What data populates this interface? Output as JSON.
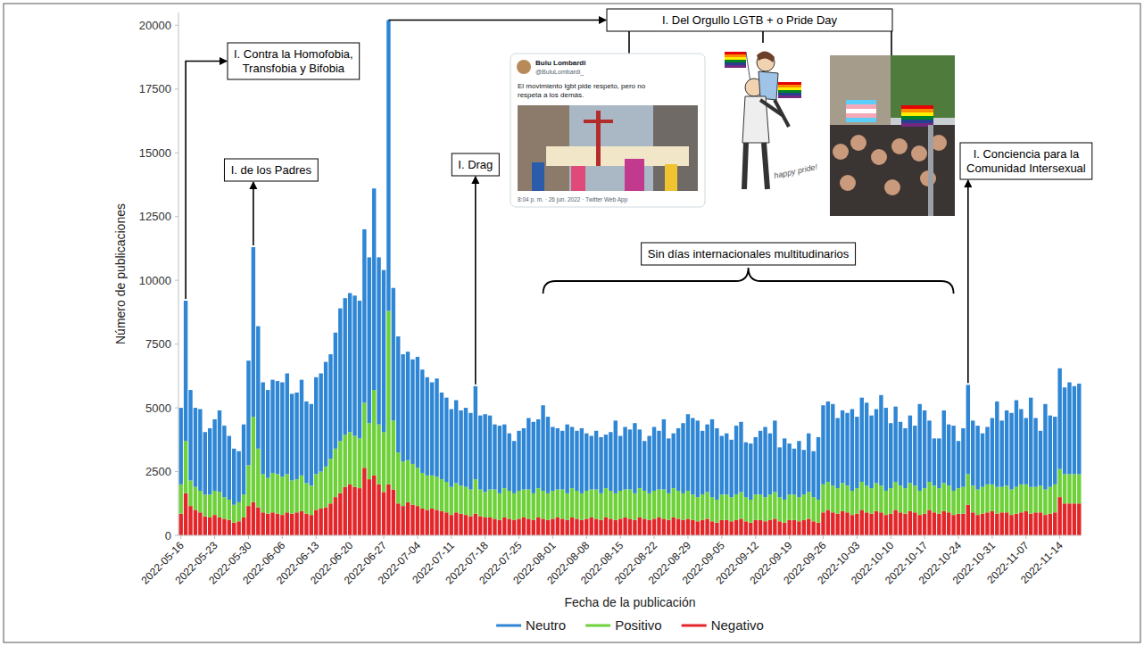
{
  "chart_data": {
    "type": "bar",
    "stacked": true,
    "grid": false,
    "legend": "bottom",
    "xlabel": "Fecha de la publicación",
    "ylabel": "Número de publicaciones",
    "ylim": [
      0,
      20500
    ],
    "yticks": [
      0,
      2500,
      5000,
      7500,
      10000,
      12500,
      15000,
      17500,
      20000
    ],
    "categories": [
      "2022-05-16",
      null,
      null,
      null,
      null,
      null,
      null,
      "2022-05-23",
      null,
      null,
      null,
      null,
      null,
      null,
      "2022-05-30",
      null,
      null,
      null,
      null,
      null,
      null,
      "2022-06-06",
      null,
      null,
      null,
      null,
      null,
      null,
      "2022-06-13",
      null,
      null,
      null,
      null,
      null,
      null,
      "2022-06-20",
      null,
      null,
      null,
      null,
      null,
      null,
      "2022-06-27",
      null,
      null,
      null,
      null,
      null,
      null,
      "2022-07-04",
      null,
      null,
      null,
      null,
      null,
      null,
      "2022-07-11",
      null,
      null,
      null,
      null,
      null,
      null,
      "2022-07-18",
      null,
      null,
      null,
      null,
      null,
      null,
      "2022-07-25",
      null,
      null,
      null,
      null,
      null,
      null,
      "2022-08-01",
      null,
      null,
      null,
      null,
      null,
      null,
      "2022-08-08",
      null,
      null,
      null,
      null,
      null,
      null,
      "2022-08-15",
      null,
      null,
      null,
      null,
      null,
      null,
      "2022-08-22",
      null,
      null,
      null,
      null,
      null,
      null,
      "2022-08-29",
      null,
      null,
      null,
      null,
      null,
      null,
      "2022-09-05",
      null,
      null,
      null,
      null,
      null,
      null,
      "2022-09-12",
      null,
      null,
      null,
      null,
      null,
      null,
      "2022-09-19",
      null,
      null,
      null,
      null,
      null,
      null,
      "2022-09-26",
      null,
      null,
      null,
      null,
      null,
      null,
      "2022-10-03",
      null,
      null,
      null,
      null,
      null,
      null,
      "2022-10-10",
      null,
      null,
      null,
      null,
      null,
      null,
      "2022-10-17",
      null,
      null,
      null,
      null,
      null,
      null,
      "2022-10-24",
      null,
      null,
      null,
      null,
      null,
      null,
      "2022-10-31",
      null,
      null,
      null,
      null,
      null,
      null,
      "2022-11-07",
      null,
      null,
      null,
      null,
      null,
      null,
      "2022-11-14",
      null,
      null,
      null,
      null
    ],
    "series": [
      {
        "name": "Neutro",
        "color": "#2e86d4",
        "values": [
          3000,
          5500,
          3550,
          3100,
          3200,
          2450,
          2600,
          2800,
          3200,
          2800,
          2500,
          2200,
          2000,
          2750,
          4100,
          6650,
          4800,
          3600,
          3450,
          3650,
          3650,
          3700,
          3950,
          3400,
          3400,
          3750,
          3200,
          3200,
          3800,
          3850,
          4100,
          4100,
          4550,
          5200,
          5350,
          5450,
          5500,
          5400,
          6800,
          6500,
          7900,
          6550,
          6350,
          11400,
          5200,
          4550,
          4200,
          4250,
          4100,
          4350,
          4050,
          3850,
          3650,
          3850,
          3400,
          3300,
          3050,
          3250,
          2950,
          3100,
          3000,
          3650,
          2900,
          3050,
          2900,
          2550,
          2650,
          2500,
          2250,
          2050,
          2350,
          2400,
          2800,
          2800,
          2700,
          3350,
          3000,
          2500,
          2400,
          2300,
          2700,
          2400,
          2350,
          2550,
          2250,
          2100,
          2300,
          2200,
          2100,
          2300,
          2850,
          2150,
          2450,
          2350,
          2750,
          2300,
          1950,
          2250,
          2500,
          2300,
          2750,
          2150,
          2150,
          2450,
          2750,
          3000,
          3000,
          3000,
          2500,
          2650,
          3050,
          2800,
          2300,
          2400,
          2250,
          2700,
          2750,
          2150,
          2200,
          2250,
          2500,
          2750,
          2400,
          2800,
          1950,
          2400,
          2000,
          1800,
          2200,
          1750,
          2300,
          1800,
          2450,
          3100,
          3150,
          3200,
          2750,
          2850,
          2850,
          3200,
          2800,
          3300,
          3250,
          2850,
          2900,
          3550,
          3250,
          2550,
          2950,
          2500,
          2350,
          2650,
          2350,
          3400,
          3050,
          2400,
          1850,
          1950,
          2850,
          2400,
          2550,
          1850,
          2300,
          3500,
          2550,
          2500,
          2100,
          2250,
          2600,
          3350,
          2600,
          2950,
          3000,
          3400,
          2950,
          2600,
          3500,
          2700,
          2150,
          3350,
          2800,
          2650,
          3950,
          3400,
          3600,
          3450,
          3550
        ]
      },
      {
        "name": "Positivo",
        "color": "#6fd13a",
        "values": [
          1150,
          2050,
          1000,
          900,
          850,
          850,
          900,
          950,
          1000,
          850,
          800,
          700,
          750,
          900,
          1600,
          3350,
          2300,
          1500,
          1400,
          1550,
          1550,
          1500,
          1500,
          1300,
          1300,
          1400,
          1200,
          1150,
          1400,
          1450,
          1600,
          1750,
          1900,
          2050,
          2050,
          2050,
          2000,
          1950,
          2550,
          2200,
          3350,
          2350,
          2350,
          6800,
          2700,
          2000,
          1750,
          1650,
          1600,
          1500,
          1400,
          1350,
          1300,
          1300,
          1250,
          1200,
          1100,
          1150,
          1100,
          1100,
          1050,
          1350,
          1050,
          1000,
          1100,
          1150,
          1050,
          1150,
          1100,
          1050,
          1100,
          1100,
          1150,
          1050,
          1150,
          1100,
          1050,
          1100,
          1100,
          1150,
          1050,
          1150,
          1100,
          1050,
          1100,
          1100,
          1150,
          1050,
          1150,
          1100,
          1050,
          1100,
          1100,
          1150,
          1050,
          1150,
          1100,
          1050,
          1100,
          1100,
          1150,
          1050,
          1150,
          1100,
          1050,
          1100,
          1000,
          950,
          1000,
          1050,
          950,
          900,
          1000,
          1000,
          950,
          1000,
          1050,
          950,
          900,
          1000,
          1000,
          950,
          1000,
          1050,
          950,
          900,
          1000,
          1000,
          950,
          1000,
          1050,
          950,
          900,
          1100,
          1100,
          1050,
          1000,
          1100,
          1050,
          950,
          1000,
          1100,
          1050,
          1000,
          1100,
          1050,
          950,
          1000,
          1100,
          1050,
          1000,
          1100,
          1050,
          950,
          1000,
          1100,
          1050,
          1000,
          1100,
          1050,
          950,
          1000,
          1050,
          1200,
          1050,
          1000,
          1050,
          1100,
          1050,
          1050,
          1000,
          1050,
          1000,
          1050,
          1100,
          1050,
          1050,
          1000,
          1050,
          1000,
          1050,
          1100,
          1100,
          1150,
          1150,
          1150,
          1150
        ]
      },
      {
        "name": "Negativo",
        "color": "#e3262a",
        "values": [
          850,
          1650,
          1150,
          1000,
          900,
          750,
          700,
          800,
          700,
          650,
          600,
          500,
          550,
          700,
          1150,
          1300,
          1100,
          900,
          850,
          900,
          850,
          800,
          900,
          850,
          900,
          950,
          850,
          800,
          1000,
          1050,
          1100,
          1250,
          1500,
          1650,
          1900,
          2000,
          1900,
          1850,
          2650,
          2200,
          2350,
          2000,
          1700,
          2000,
          1800,
          1250,
          1150,
          1300,
          1200,
          1150,
          1050,
          1000,
          1050,
          1000,
          950,
          900,
          800,
          900,
          850,
          800,
          750,
          850,
          750,
          700,
          700,
          650,
          600,
          700,
          650,
          600,
          650,
          700,
          650,
          600,
          700,
          650,
          600,
          650,
          700,
          650,
          600,
          700,
          650,
          600,
          650,
          700,
          650,
          600,
          700,
          650,
          600,
          650,
          700,
          650,
          600,
          700,
          650,
          600,
          650,
          700,
          650,
          600,
          700,
          650,
          600,
          650,
          600,
          550,
          600,
          650,
          550,
          500,
          600,
          600,
          550,
          600,
          650,
          550,
          500,
          600,
          600,
          550,
          600,
          650,
          550,
          500,
          600,
          600,
          550,
          600,
          650,
          550,
          500,
          900,
          1000,
          900,
          850,
          950,
          900,
          800,
          850,
          1000,
          900,
          850,
          950,
          900,
          800,
          850,
          1000,
          900,
          850,
          950,
          900,
          800,
          850,
          1000,
          900,
          850,
          950,
          900,
          800,
          850,
          850,
          1200,
          900,
          800,
          850,
          900,
          950,
          850,
          900,
          900,
          800,
          850,
          900,
          950,
          850,
          900,
          900,
          800,
          850,
          900,
          1500,
          1250,
          1250,
          1250,
          1250
        ]
      }
    ],
    "annotations": [
      "I. Contra la Homofobia, Transfobia y Bifobia",
      "I. de los Padres",
      "I. Del Orgullo LGTB + o Pride Day",
      "I. Drag",
      "Sin días internacionales multitudinarios",
      "I. Conciencia para la Comunidad Intersexual"
    ],
    "tweet": {
      "name": "Bulu Lombardi",
      "handle": "@BuluLombardi_",
      "text": "El movimiento lgbt pide respeto, pero no respeta a los demás.",
      "meta": "8:04 p. m. · 26 jun. 2022 · Twitter Web App"
    },
    "drawing_caption": "happy pride!"
  }
}
